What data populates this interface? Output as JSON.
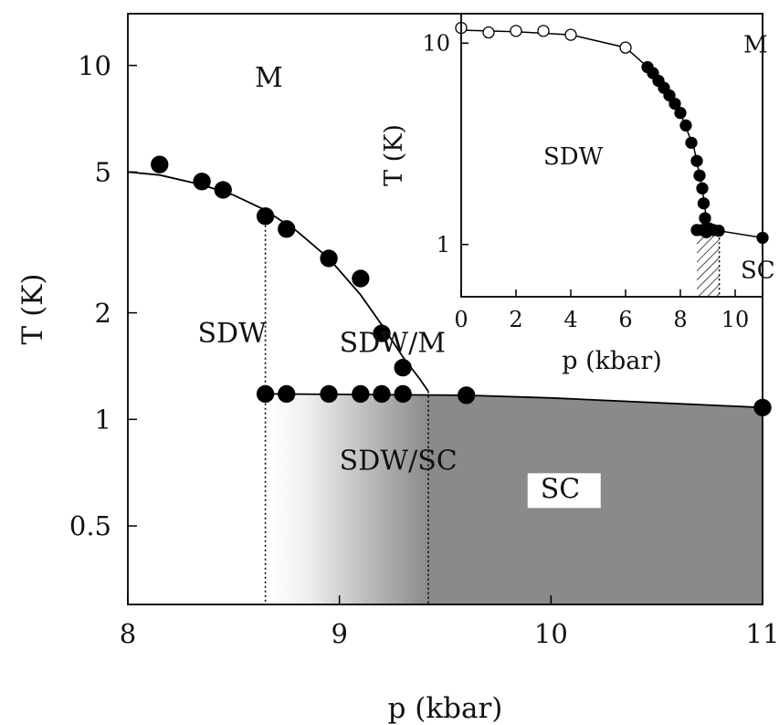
{
  "chart_data": [
    {
      "type": "scatter",
      "xlabel": "p (kbar)",
      "ylabel": "T (K)",
      "xlim": [
        8,
        11
      ],
      "ylim": [
        0.3,
        14
      ],
      "yscale": "log",
      "xticks": [
        {
          "value": 8,
          "label": "8"
        },
        {
          "value": 9,
          "label": "9"
        },
        {
          "value": 10,
          "label": "10"
        },
        {
          "value": 11,
          "label": "11"
        }
      ],
      "yticks": [
        {
          "value": 0.5,
          "label": "0.5"
        },
        {
          "value": 1,
          "label": "1"
        },
        {
          "value": 2,
          "label": "2"
        },
        {
          "value": 5,
          "label": "5"
        },
        {
          "value": 10,
          "label": "10"
        }
      ],
      "grid": false,
      "series": [
        {
          "marker": "filled-circle",
          "points": [
            [
              8.15,
              5.25
            ],
            [
              8.35,
              4.7
            ],
            [
              8.45,
              4.45
            ],
            [
              8.65,
              3.75
            ],
            [
              8.75,
              3.45
            ],
            [
              8.95,
              2.85
            ],
            [
              9.1,
              2.5
            ],
            [
              9.2,
              1.75
            ],
            [
              9.3,
              1.4
            ],
            [
              8.65,
              1.18
            ],
            [
              8.75,
              1.18
            ],
            [
              8.95,
              1.18
            ],
            [
              9.1,
              1.18
            ],
            [
              9.2,
              1.18
            ],
            [
              9.3,
              1.18
            ],
            [
              9.6,
              1.17
            ],
            [
              11.0,
              1.08
            ]
          ]
        }
      ],
      "lines": [
        {
          "role": "SDW-phase-boundary",
          "x": [
            8.0,
            8.15,
            8.35,
            8.5,
            8.65,
            8.8,
            8.95,
            9.1,
            9.2,
            9.3,
            9.38,
            9.42
          ],
          "y": [
            5.0,
            4.9,
            4.6,
            4.3,
            3.9,
            3.4,
            2.85,
            2.25,
            1.85,
            1.5,
            1.3,
            1.2
          ]
        },
        {
          "role": "SC-phase-boundary",
          "x": [
            8.65,
            9.6,
            10.0,
            11.0
          ],
          "y": [
            1.18,
            1.17,
            1.15,
            1.08
          ]
        }
      ],
      "dotted_lines": [
        {
          "x": 8.65,
          "y_range": [
            0.3,
            3.75
          ]
        },
        {
          "x": 9.42,
          "y_range": [
            0.3,
            1.2
          ]
        }
      ],
      "regions": [
        {
          "label": "SDW/SC",
          "x_range": [
            8.65,
            9.42
          ],
          "fill": "gradient white-to-gray"
        },
        {
          "label": "SC",
          "x_range": [
            9.42,
            11.0
          ],
          "fill": "#8a8a8a"
        }
      ],
      "annotations": [
        {
          "text": "M",
          "x": 8.6,
          "y": 8.7
        },
        {
          "text": "SDW",
          "x": 8.33,
          "y": 1.65
        },
        {
          "text": "SDW/M",
          "x": 9.0,
          "y": 1.55
        },
        {
          "text": "SDW/SC",
          "x": 9.0,
          "y": 0.72
        },
        {
          "text": "SC",
          "x": 9.95,
          "y": 0.6
        }
      ],
      "colors": {
        "marker": "#000000",
        "sc_region": "#8a8a8a",
        "label_box": "#ffffff"
      }
    },
    {
      "type": "scatter",
      "xlabel": "p (kbar)",
      "ylabel": "T (K)",
      "xlim": [
        0,
        11
      ],
      "ylim": [
        0.55,
        14
      ],
      "yscale": "log",
      "xticks": [
        {
          "value": 0,
          "label": "0"
        },
        {
          "value": 2,
          "label": "2"
        },
        {
          "value": 4,
          "label": "4"
        },
        {
          "value": 6,
          "label": "6"
        },
        {
          "value": 8,
          "label": "8"
        },
        {
          "value": 10,
          "label": "10"
        }
      ],
      "yticks": [
        {
          "value": 1,
          "label": "1"
        },
        {
          "value": 10,
          "label": "10"
        }
      ],
      "grid": false,
      "series": [
        {
          "marker": "open-circle",
          "points": [
            [
              0,
              11.9
            ],
            [
              1,
              11.3
            ],
            [
              2,
              11.5
            ],
            [
              3,
              11.5
            ],
            [
              4,
              11.0
            ],
            [
              6,
              9.5
            ]
          ]
        },
        {
          "marker": "filled-circle",
          "points": [
            [
              6.8,
              7.6
            ],
            [
              7.0,
              7.1
            ],
            [
              7.2,
              6.5
            ],
            [
              7.4,
              6.0
            ],
            [
              7.6,
              5.5
            ],
            [
              7.8,
              5.0
            ],
            [
              8.0,
              4.5
            ],
            [
              8.2,
              3.9
            ],
            [
              8.4,
              3.2
            ],
            [
              8.6,
              2.6
            ],
            [
              8.7,
              2.2
            ],
            [
              8.8,
              1.9
            ],
            [
              8.85,
              1.6
            ],
            [
              8.9,
              1.35
            ],
            [
              8.95,
              1.15
            ],
            [
              9.0,
              1.2
            ],
            [
              9.05,
              1.2
            ],
            [
              8.6,
              1.18
            ],
            [
              8.8,
              1.18
            ],
            [
              9.2,
              1.18
            ],
            [
              9.4,
              1.17
            ],
            [
              11.0,
              1.08
            ]
          ]
        }
      ],
      "lines": [
        {
          "role": "SDW-phase-boundary",
          "x": [
            0,
            2,
            4,
            6,
            7,
            8,
            8.5,
            8.8,
            9.0
          ],
          "y": [
            11.6,
            11.4,
            11.0,
            9.5,
            7.2,
            4.5,
            3.0,
            1.9,
            1.2
          ]
        },
        {
          "role": "SC-phase-boundary",
          "x": [
            8.6,
            9.4,
            11.0
          ],
          "y": [
            1.18,
            1.17,
            1.08
          ]
        }
      ],
      "dotted_lines": [
        {
          "x": 9.42,
          "y_range": [
            0.55,
            1.2
          ]
        }
      ],
      "regions": [
        {
          "label": "hatched SDW/SC",
          "x_range": [
            8.6,
            9.42
          ],
          "fill": "hatched"
        }
      ],
      "annotations": [
        {
          "text": "M",
          "x": 10.3,
          "y": 9.0
        },
        {
          "text": "SDW",
          "x": 3.0,
          "y": 2.5
        },
        {
          "text": "SC",
          "x": 10.2,
          "y": 0.68
        }
      ]
    }
  ]
}
